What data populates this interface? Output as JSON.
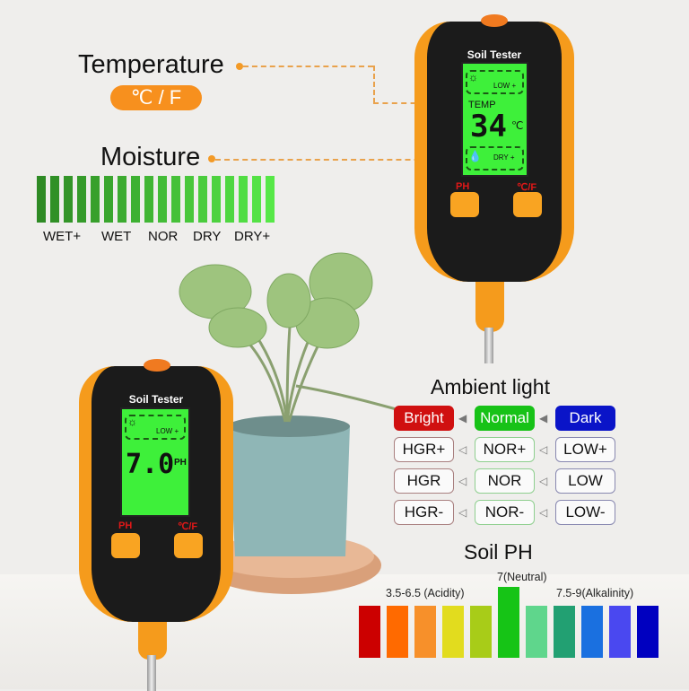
{
  "temperature": {
    "title": "Temperature",
    "unit_badge": "℃ / F"
  },
  "moisture": {
    "title": "Moisture",
    "scale_labels": [
      "WET+",
      "WET",
      "NOR",
      "DRY",
      "DRY+"
    ],
    "bar_count": 18,
    "colors": [
      "#2e8a24",
      "#56e847"
    ]
  },
  "device_top": {
    "brand": "Soil Tester",
    "light_reading": "LOW +",
    "mode": "TEMP",
    "value": "34",
    "unit": "℃",
    "moisture_reading": "DRY +",
    "button_left": "PH",
    "button_right": "℃/F"
  },
  "device_bottom": {
    "brand": "Soil Tester",
    "light_reading": "LOW +",
    "value": "7.0",
    "unit": "PH",
    "button_left": "PH",
    "button_right": "℃/F"
  },
  "ambient_light": {
    "title": "Ambient light",
    "columns": [
      {
        "header": "Bright",
        "color": "#d01010",
        "border": "#a98080",
        "levels": [
          "HGR+",
          "HGR",
          "HGR-"
        ]
      },
      {
        "header": "Normal",
        "color": "#17c217",
        "border": "#8fcf8f",
        "levels": [
          "NOR+",
          "NOR",
          "NOR-"
        ]
      },
      {
        "header": "Dark",
        "color": "#0a14c8",
        "border": "#8888b0",
        "levels": [
          "LOW+",
          "LOW",
          "LOW-"
        ]
      }
    ]
  },
  "soil_ph": {
    "title": "Soil PH",
    "acid_label": "3.5-6.5 (Acidity)",
    "neutral_label": "7(Neutral)",
    "alkaline_label": "7.5-9(Alkalinity)",
    "bar_colors": [
      "#cc0000",
      "#ff6a00",
      "#f7902a",
      "#e2dc1e",
      "#a8cc18",
      "#16c416",
      "#5fd68c",
      "#22a072",
      "#1a70e0",
      "#4a48f0",
      "#0000c0"
    ],
    "neutral_index": 5
  }
}
